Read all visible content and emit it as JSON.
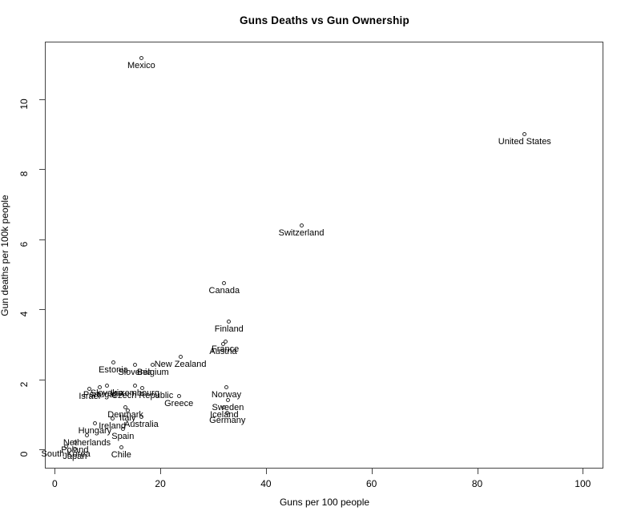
{
  "chart_data": {
    "type": "scatter",
    "title": "Guns Deaths vs Gun Ownership",
    "xlabel": "Guns per 100 people",
    "ylabel": "Gun deaths per 100k people",
    "xlim": [
      0,
      100
    ],
    "ylim": [
      0,
      11.5
    ],
    "x_ticks": [
      0,
      20,
      40,
      60,
      80,
      100
    ],
    "y_ticks": [
      0,
      2,
      4,
      6,
      8,
      10
    ],
    "grid": false,
    "legend": "none",
    "marker": "open-circle",
    "marker_color": "#2b2b2b",
    "label_position": "below-point",
    "points": [
      {
        "label": "Mexico",
        "x": 16.4,
        "y": 11.17
      },
      {
        "label": "United States",
        "x": 89.0,
        "y": 9.0
      },
      {
        "label": "Switzerland",
        "x": 46.7,
        "y": 6.4
      },
      {
        "label": "Canada",
        "x": 32.1,
        "y": 4.75
      },
      {
        "label": "Finland",
        "x": 33.0,
        "y": 3.65
      },
      {
        "label": "France",
        "x": 32.3,
        "y": 3.07
      },
      {
        "label": "Austria",
        "x": 31.9,
        "y": 3.0
      },
      {
        "label": "New Zealand",
        "x": 23.8,
        "y": 2.64
      },
      {
        "label": "Estonia",
        "x": 11.1,
        "y": 2.49
      },
      {
        "label": "Slovenia",
        "x": 15.2,
        "y": 2.41
      },
      {
        "label": "Belgium",
        "x": 18.6,
        "y": 2.41
      },
      {
        "label": "Israel",
        "x": 6.6,
        "y": 1.72
      },
      {
        "label": "Portugal",
        "x": 8.5,
        "y": 1.78
      },
      {
        "label": "Slovakia",
        "x": 9.9,
        "y": 1.83
      },
      {
        "label": "Luxembourg",
        "x": 15.2,
        "y": 1.81
      },
      {
        "label": "Czech Republic",
        "x": 16.6,
        "y": 1.74
      },
      {
        "label": "Norway",
        "x": 32.5,
        "y": 1.77
      },
      {
        "label": "Greece",
        "x": 23.5,
        "y": 1.53
      },
      {
        "label": "Sweden",
        "x": 32.8,
        "y": 1.4
      },
      {
        "label": "Denmark",
        "x": 13.4,
        "y": 1.21
      },
      {
        "label": "Iceland",
        "x": 32.1,
        "y": 1.19
      },
      {
        "label": "Italy",
        "x": 13.8,
        "y": 1.11
      },
      {
        "label": "Germany",
        "x": 32.7,
        "y": 1.03
      },
      {
        "label": "Australia",
        "x": 16.4,
        "y": 0.92
      },
      {
        "label": "Ireland",
        "x": 10.9,
        "y": 0.89
      },
      {
        "label": "Hungary",
        "x": 7.6,
        "y": 0.74
      },
      {
        "label": "Spain",
        "x": 12.9,
        "y": 0.58
      },
      {
        "label": "Netherlands",
        "x": 6.1,
        "y": 0.4
      },
      {
        "label": "Poland",
        "x": 3.8,
        "y": 0.2
      },
      {
        "label": "South Korea",
        "x": 2.1,
        "y": 0.08
      },
      {
        "label": "Japan",
        "x": 3.8,
        "y": 0.02
      },
      {
        "label": "Chile",
        "x": 12.6,
        "y": 0.05
      }
    ]
  }
}
